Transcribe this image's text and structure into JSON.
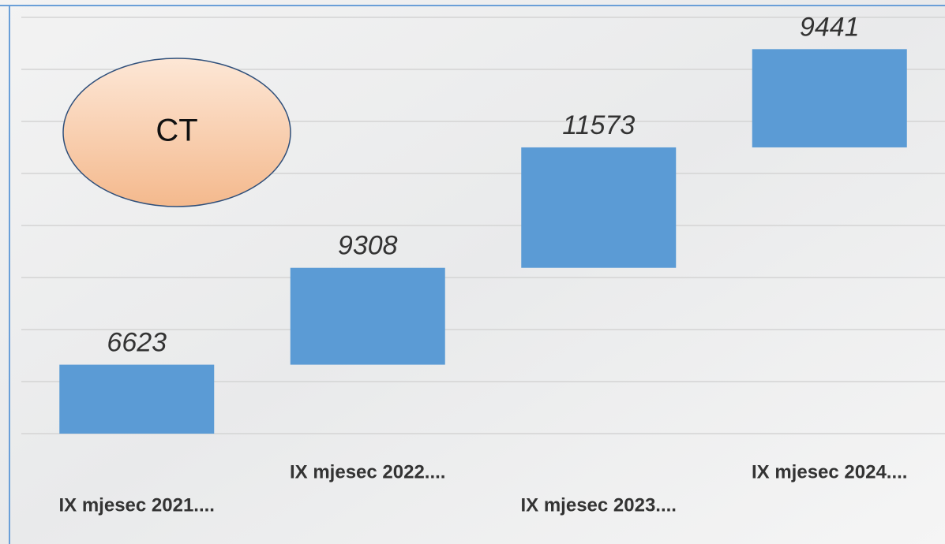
{
  "chart_data": {
    "type": "waterfall",
    "annotation": "CT",
    "categories": [
      "IX mjesec 2021....",
      "IX mjesec 2022....",
      "IX mjesec 2023....",
      "IX mjesec 2024...."
    ],
    "values": [
      6623,
      9308,
      11573,
      9441
    ],
    "color": "#5b9bd5",
    "ylim": [
      0,
      40000
    ],
    "yticks": [
      0,
      5000,
      10000,
      15000,
      20000,
      25000,
      30000,
      35000,
      40000
    ],
    "grid": true
  }
}
